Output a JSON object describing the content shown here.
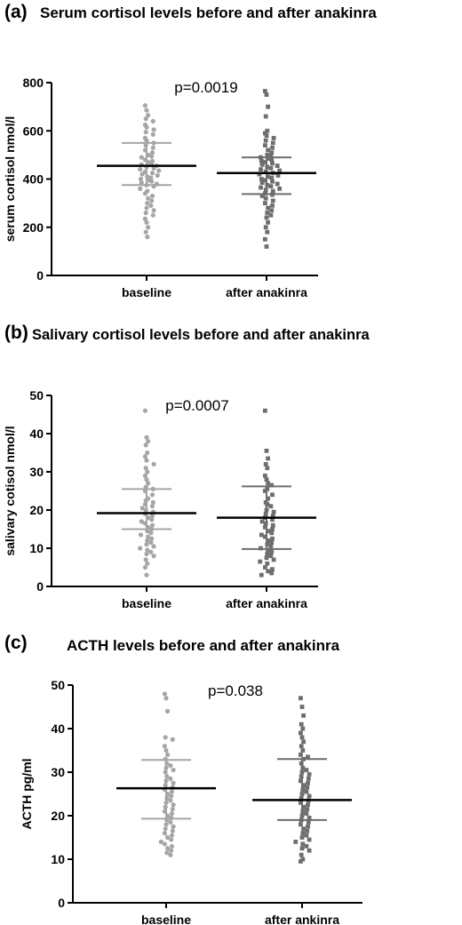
{
  "chart_data": [
    {
      "type": "scatter",
      "panel_label": "(a)",
      "title": "Serum cortisol levels before and after anakinra",
      "ylabel": "serum cortisol nmol/l",
      "ylim": [
        0,
        800
      ],
      "yticks": [
        "0",
        "200",
        "400",
        "600",
        "800"
      ],
      "annotation": "p=0.0019",
      "categories": [
        "baseline",
        "after anakinra"
      ],
      "series": [
        {
          "marker": "circle",
          "color": "#a6a6a6",
          "mean": 455,
          "sd_upper": 550,
          "sd_lower": 375,
          "values": [
            705,
            685,
            665,
            650,
            640,
            625,
            615,
            605,
            595,
            585,
            570,
            560,
            550,
            540,
            530,
            520,
            510,
            500,
            495,
            490,
            480,
            475,
            470,
            465,
            460,
            455,
            450,
            445,
            440,
            435,
            430,
            425,
            420,
            415,
            410,
            405,
            400,
            395,
            390,
            385,
            380,
            375,
            370,
            360,
            350,
            340,
            330,
            320,
            310,
            300,
            290,
            280,
            270,
            260,
            250,
            235,
            220,
            200,
            180,
            160
          ]
        },
        {
          "marker": "square",
          "color": "#6e6e6e",
          "mean": 425,
          "sd_upper": 490,
          "sd_lower": 338,
          "values": [
            765,
            750,
            700,
            660,
            600,
            590,
            580,
            570,
            560,
            550,
            540,
            530,
            520,
            510,
            500,
            495,
            490,
            485,
            480,
            475,
            470,
            465,
            460,
            455,
            450,
            445,
            440,
            435,
            430,
            425,
            420,
            415,
            410,
            405,
            400,
            395,
            390,
            385,
            380,
            375,
            370,
            365,
            360,
            355,
            350,
            340,
            335,
            330,
            320,
            310,
            300,
            290,
            280,
            270,
            260,
            250,
            240,
            220,
            200,
            180,
            150,
            120
          ]
        }
      ]
    },
    {
      "type": "scatter",
      "panel_label": "(b)",
      "title": "Salivary cortisol levels before and after anakinra",
      "ylabel": "salivary cotisol nmol/l",
      "ylim": [
        0,
        50
      ],
      "yticks": [
        "0",
        "10",
        "20",
        "30",
        "40",
        "50"
      ],
      "annotation": "p=0.0007",
      "categories": [
        "baseline",
        "after anakinra"
      ],
      "series": [
        {
          "marker": "circle",
          "color": "#a6a6a6",
          "mean": 19.2,
          "sd_upper": 25.5,
          "sd_lower": 15,
          "values": [
            46,
            39,
            38,
            37,
            35,
            34,
            33,
            32,
            31,
            30,
            29,
            28,
            27,
            26,
            25.5,
            25,
            24,
            23,
            22.5,
            22,
            21.5,
            21,
            20.5,
            20,
            19.5,
            19,
            18.5,
            18,
            17.5,
            17,
            16.5,
            16,
            15.5,
            15,
            14.5,
            14,
            13.5,
            13,
            12.5,
            12,
            11.5,
            11,
            10.5,
            10,
            9.5,
            9,
            8.5,
            8,
            7,
            6,
            5,
            3
          ]
        },
        {
          "marker": "square",
          "color": "#6e6e6e",
          "mean": 18,
          "sd_upper": 26.2,
          "sd_lower": 9.8,
          "values": [
            46,
            35.5,
            33.5,
            32,
            31,
            29,
            28,
            27,
            26.5,
            25.5,
            25,
            24,
            23,
            22,
            21.5,
            21,
            20,
            19.5,
            19,
            18.5,
            18,
            17.5,
            17,
            16.5,
            16,
            15.5,
            15,
            14.5,
            14,
            13.5,
            13,
            12.5,
            12,
            11.5,
            11,
            10.5,
            10,
            9.5,
            9,
            8.5,
            8,
            7.5,
            7,
            6.5,
            6,
            5,
            4.5,
            4,
            3.5,
            3
          ]
        }
      ]
    },
    {
      "type": "scatter",
      "panel_label": "(c)",
      "title": "ACTH levels before and after anakinra",
      "ylabel": "ACTH pg/ml",
      "ylim": [
        0,
        50
      ],
      "yticks": [
        "0",
        "10",
        "20",
        "30",
        "40",
        "50"
      ],
      "annotation": "p=0.038",
      "categories": [
        "baseline",
        "after ankinra"
      ],
      "series": [
        {
          "marker": "circle",
          "color": "#a6a6a6",
          "mean": 26.3,
          "sd_upper": 32.8,
          "sd_lower": 19.3,
          "values": [
            48,
            47,
            44,
            38,
            37.5,
            36,
            35,
            34,
            33,
            32,
            31.5,
            31,
            30.5,
            30,
            29,
            28.5,
            28,
            27.5,
            27,
            26.5,
            26,
            25.5,
            25,
            24.5,
            24,
            23.5,
            23,
            22.5,
            22,
            21.5,
            21,
            20.5,
            20,
            19.5,
            19,
            18.5,
            18,
            17.5,
            17,
            16.5,
            16,
            15.5,
            15,
            14.5,
            14,
            13.5,
            13,
            12.5,
            12,
            11.5,
            11
          ]
        },
        {
          "marker": "square",
          "color": "#6e6e6e",
          "mean": 23.6,
          "sd_upper": 33,
          "sd_lower": 19,
          "values": [
            47,
            45,
            43,
            41,
            40,
            39,
            38,
            37,
            36,
            35,
            34,
            33.5,
            33,
            32,
            31,
            30.5,
            30,
            29.5,
            29,
            28.5,
            28,
            27.5,
            27,
            26.5,
            26,
            25.5,
            25,
            24.5,
            24,
            23.5,
            23,
            22.5,
            22,
            21.5,
            21,
            20.5,
            20,
            19.5,
            19,
            18.5,
            18,
            17.5,
            17,
            16.5,
            16,
            15.5,
            15,
            14.5,
            14,
            13.5,
            13,
            12.5,
            12,
            11,
            10,
            9.5
          ]
        }
      ]
    }
  ]
}
